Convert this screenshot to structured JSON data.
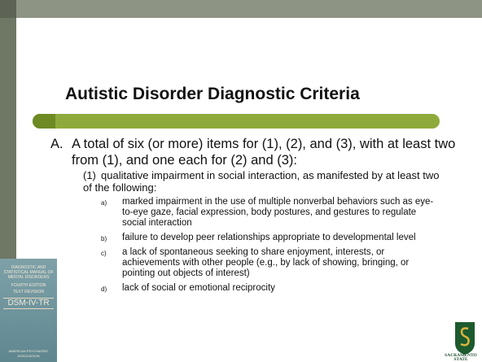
{
  "title": "Autistic Disorder Diagnostic Criteria",
  "criterion": {
    "label": "A.",
    "text": "A total of six (or more) items for (1), (2), and (3), with at least two from (1), and one each for (2) and (3):",
    "sub": {
      "label": "(1)",
      "text": "qualitative impairment in social interaction, as manifested by at least two of the following:",
      "items": [
        {
          "label": "a)",
          "text": "marked impairment in the use of multiple nonverbal behaviors such as eye-to-eye gaze, facial expression, body postures, and gestures to regulate social interaction"
        },
        {
          "label": "b)",
          "text": "failure to develop peer relationships appropriate to developmental level"
        },
        {
          "label": "c)",
          "text": "a lack of spontaneous seeking to share enjoyment, interests, or achievements with other people (e.g., by lack of showing, bringing, or pointing out objects of interest)"
        },
        {
          "label": "d)",
          "text": "lack of social or emotional reciprocity"
        }
      ]
    }
  },
  "book": {
    "title": "DIAGNOSTIC AND STATISTICAL MANUAL OF MENTAL DISORDERS",
    "edition": "FOURTH EDITION",
    "revision": "TEXT REVISION",
    "name": "DSM-IV-TR",
    "publisher": "AMERICAN PSYCHIATRIC ASSOCIATION"
  },
  "logo": {
    "text": "SACRAMENTO STATE"
  }
}
